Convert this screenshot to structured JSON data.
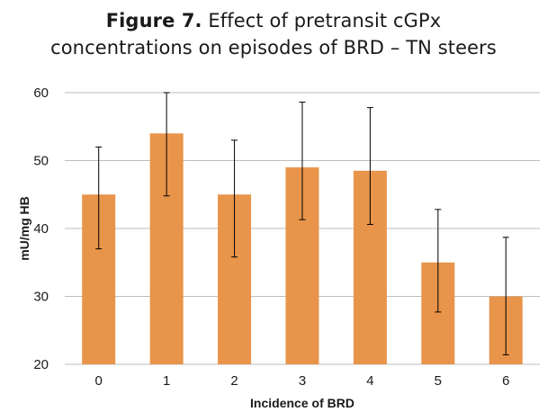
{
  "title": {
    "label": "Figure 7.",
    "line1_rest": " Effect of pretransit cGPx",
    "line2": "concentrations on episodes of BRD – TN steers"
  },
  "colors": {
    "bar": "#e8944a",
    "grid": "#bdbdbd",
    "error_bar": "#000000",
    "text": "#1a1a1a"
  },
  "chart_data": {
    "type": "bar",
    "title": "Figure 7. Effect of pretransit cGPx concentrations on episodes of BRD – TN steers",
    "xlabel": "Incidence of BRD",
    "ylabel": "mU/mg HB",
    "categories": [
      "0",
      "1",
      "2",
      "3",
      "4",
      "5",
      "6"
    ],
    "values": [
      45,
      54,
      45,
      49,
      48.5,
      35,
      30
    ],
    "error_bars": [
      {
        "low": 37,
        "high": 52
      },
      {
        "low": 44.8,
        "high": 60
      },
      {
        "low": 35.8,
        "high": 53
      },
      {
        "low": 41.3,
        "high": 58.6
      },
      {
        "low": 40.6,
        "high": 57.8
      },
      {
        "low": 27.7,
        "high": 42.8
      },
      {
        "low": 21.4,
        "high": 38.7
      }
    ],
    "ylim": [
      20,
      60
    ],
    "yticks": [
      20,
      30,
      40,
      50,
      60
    ],
    "grid": true,
    "legend": false
  }
}
